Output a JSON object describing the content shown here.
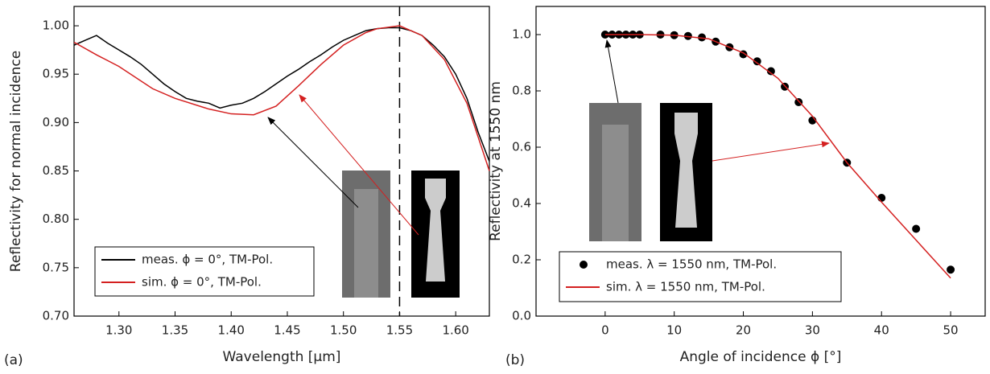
{
  "chart_data": [
    {
      "type": "line",
      "panel_label": "(a)",
      "x_label": "Wavelength [µm]",
      "y_label": "Reflectivity for normal incidence",
      "xlim": [
        1.26,
        1.63
      ],
      "ylim": [
        0.7,
        1.02
      ],
      "xticks": [
        {
          "value": 1.3,
          "label": "1.30"
        },
        1.35,
        {
          "value": 1.4,
          "label": "1.40"
        },
        1.45,
        {
          "value": 1.5,
          "label": "1.50"
        },
        1.55,
        {
          "value": 1.6,
          "label": "1.60"
        }
      ],
      "yticks": [
        {
          "value": 0.7,
          "label": "0.70"
        },
        0.75,
        {
          "value": 0.8,
          "label": "0.80"
        },
        0.85,
        {
          "value": 0.9,
          "label": "0.90"
        },
        0.95,
        {
          "value": 1.0,
          "label": "1.00"
        }
      ],
      "vline": 1.55,
      "series": [
        {
          "name": "meas. ϕ = 0°, TM-Pol.",
          "color": "#000000",
          "x": [
            1.26,
            1.27,
            1.28,
            1.29,
            1.3,
            1.31,
            1.32,
            1.33,
            1.34,
            1.35,
            1.36,
            1.37,
            1.38,
            1.39,
            1.4,
            1.41,
            1.42,
            1.43,
            1.44,
            1.45,
            1.46,
            1.47,
            1.48,
            1.49,
            1.5,
            1.51,
            1.52,
            1.53,
            1.54,
            1.55,
            1.56,
            1.57,
            1.58,
            1.59,
            1.6,
            1.61,
            1.62,
            1.63
          ],
          "values": [
            0.98,
            0.985,
            0.99,
            0.982,
            0.975,
            0.968,
            0.96,
            0.95,
            0.94,
            0.932,
            0.925,
            0.922,
            0.92,
            0.915,
            0.918,
            0.92,
            0.925,
            0.932,
            0.94,
            0.948,
            0.955,
            0.963,
            0.97,
            0.978,
            0.985,
            0.99,
            0.995,
            0.997,
            0.998,
            0.998,
            0.995,
            0.99,
            0.98,
            0.968,
            0.95,
            0.925,
            0.89,
            0.86
          ]
        },
        {
          "name": "sim. ϕ = 0°, TM-Pol.",
          "color": "#d42020",
          "x": [
            1.26,
            1.28,
            1.3,
            1.33,
            1.35,
            1.38,
            1.4,
            1.42,
            1.44,
            1.46,
            1.48,
            1.5,
            1.52,
            1.53,
            1.55,
            1.57,
            1.59,
            1.61,
            1.63
          ],
          "values": [
            0.983,
            0.97,
            0.958,
            0.935,
            0.925,
            0.914,
            0.909,
            0.908,
            0.917,
            0.938,
            0.96,
            0.98,
            0.993,
            0.997,
            1.0,
            0.99,
            0.965,
            0.92,
            0.85
          ]
        }
      ]
    },
    {
      "type": "scatter",
      "panel_label": "(b)",
      "x_label": "Angle of incidence ϕ [°]",
      "y_label": "Reflectivity at 1550 nm",
      "xlim": [
        -10,
        55
      ],
      "ylim": [
        0,
        1.1
      ],
      "xticks": [
        0,
        10,
        20,
        30,
        40,
        50
      ],
      "yticks": [
        {
          "value": 0.0,
          "label": "0.0"
        },
        0.2,
        0.4,
        0.6,
        0.8,
        {
          "value": 1.0,
          "label": "1.0"
        }
      ],
      "series": [
        {
          "name": "meas. λ = 1550 nm, TM-Pol.",
          "color": "#000000",
          "style": "markers",
          "x": [
            0,
            1,
            2,
            3,
            4,
            5,
            8,
            10,
            12,
            14,
            16,
            18,
            20,
            22,
            24,
            26,
            28,
            30,
            35,
            40,
            45,
            50
          ],
          "values": [
            1.0,
            1.0,
            1.0,
            1.0,
            1.0,
            1.0,
            1.0,
            0.998,
            0.995,
            0.99,
            0.975,
            0.955,
            0.93,
            0.905,
            0.87,
            0.815,
            0.76,
            0.695,
            0.545,
            0.42,
            0.31,
            0.165
          ]
        },
        {
          "name": "sim. λ = 1550 nm, TM-Pol.",
          "color": "#d42020",
          "style": "line",
          "x": [
            0,
            5,
            10,
            15,
            20,
            25,
            30,
            35,
            40,
            45,
            50
          ],
          "values": [
            1.0,
            1.0,
            0.998,
            0.985,
            0.935,
            0.845,
            0.71,
            0.545,
            0.405,
            0.27,
            0.135
          ]
        }
      ]
    }
  ]
}
